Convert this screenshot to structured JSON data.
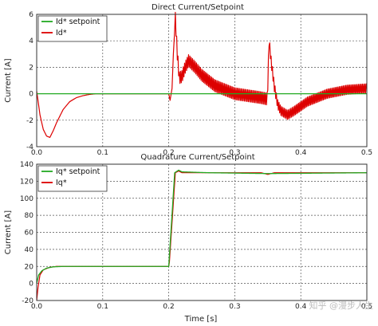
{
  "watermark": "知乎 @漫步人生",
  "chart_data": [
    {
      "type": "line",
      "title": "Direct Current/Setpoint",
      "xlabel": "",
      "ylabel": "Current [A]",
      "xlim": [
        0.0,
        0.5
      ],
      "ylim": [
        -4,
        6
      ],
      "x_ticks": [
        0.0,
        0.1,
        0.2,
        0.3,
        0.4,
        0.5
      ],
      "y_ticks": [
        -4,
        -2,
        0,
        2,
        4,
        6
      ],
      "grid": true,
      "legend": "top-left",
      "series": [
        {
          "name": "Id* setpoint",
          "color": "#22aa22",
          "x": [
            0.0,
            0.5
          ],
          "y": [
            0,
            0
          ]
        },
        {
          "name": "Id*",
          "color": "#dd0000",
          "x": [
            0.0,
            0.002,
            0.005,
            0.01,
            0.015,
            0.02,
            0.025,
            0.03,
            0.04,
            0.05,
            0.06,
            0.07,
            0.08,
            0.09,
            0.1,
            0.12,
            0.15,
            0.18,
            0.2,
            0.202,
            0.205,
            0.207,
            0.21,
            0.213,
            0.216,
            0.22,
            0.225,
            0.23,
            0.24,
            0.25,
            0.27,
            0.3,
            0.34,
            0.349,
            0.352,
            0.355,
            0.36,
            0.365,
            0.37,
            0.38,
            0.39,
            0.41,
            0.44,
            0.47,
            0.5
          ],
          "y": [
            0.2,
            -0.5,
            -1.6,
            -2.7,
            -3.2,
            -3.3,
            -2.8,
            -2.2,
            -1.2,
            -0.6,
            -0.3,
            -0.15,
            -0.05,
            0.0,
            0.0,
            0.0,
            0.0,
            0.0,
            0.0,
            -0.5,
            0.4,
            3.0,
            5.7,
            3.0,
            1.2,
            1.3,
            2.0,
            2.5,
            2.0,
            1.4,
            0.6,
            0.0,
            -0.3,
            -0.4,
            4.0,
            2.5,
            0.5,
            -0.8,
            -1.3,
            -1.6,
            -1.3,
            -0.6,
            0.0,
            0.3,
            0.4
          ],
          "ripple_band": [
            {
              "x_range": [
                0.21,
                0.35
              ],
              "amplitude": 0.45
            },
            {
              "x_range": [
                0.35,
                0.5
              ],
              "amplitude": 0.35
            }
          ]
        }
      ]
    },
    {
      "type": "line",
      "title": "Quadrature Current/Setpoint",
      "xlabel": "Time [s]",
      "ylabel": "Current [A]",
      "xlim": [
        0.0,
        0.5
      ],
      "ylim": [
        -20,
        140
      ],
      "x_ticks": [
        0.0,
        0.1,
        0.2,
        0.3,
        0.4,
        0.5
      ],
      "y_ticks": [
        -20,
        0,
        20,
        40,
        60,
        80,
        100,
        120,
        140
      ],
      "grid": true,
      "legend": "top-left",
      "series": [
        {
          "name": "Iq* setpoint",
          "color": "#22aa22",
          "x": [
            0.0,
            0.003,
            0.008,
            0.015,
            0.025,
            0.04,
            0.2,
            0.209,
            0.215,
            0.22,
            0.26,
            0.35,
            0.5
          ],
          "y": [
            0,
            10,
            15,
            18,
            19.5,
            20,
            20,
            130,
            133,
            131,
            130,
            129,
            130
          ]
        },
        {
          "name": "Iq*",
          "color": "#dd0000",
          "x": [
            0.0,
            0.002,
            0.005,
            0.01,
            0.02,
            0.03,
            0.05,
            0.2,
            0.201,
            0.21,
            0.215,
            0.22,
            0.26,
            0.34,
            0.35,
            0.36,
            0.4,
            0.5
          ],
          "y": [
            -20,
            -5,
            10,
            16,
            19,
            20,
            20,
            20,
            25,
            130,
            132,
            130,
            130,
            130,
            128,
            130,
            130,
            130
          ]
        }
      ]
    }
  ]
}
